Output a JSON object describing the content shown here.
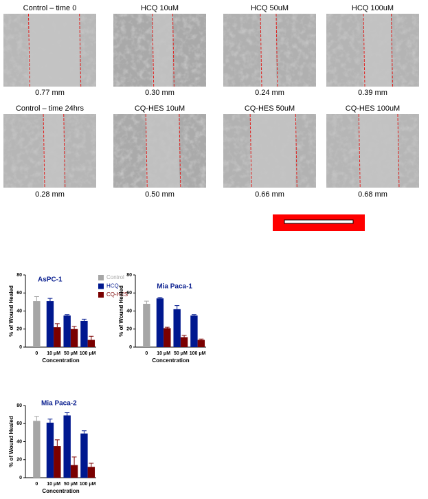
{
  "panels": [
    {
      "title": "Control – time 0",
      "measurement": "0.77 mm"
    },
    {
      "title": "HCQ 10uM",
      "measurement": "0.30 mm"
    },
    {
      "title": "HCQ 50uM",
      "measurement": "0.24 mm"
    },
    {
      "title": "HCQ 100uM",
      "measurement": "0.39 mm"
    },
    {
      "title": "Control – time 24hrs",
      "measurement": "0.28 mm"
    },
    {
      "title": "CQ-HES 10uM",
      "measurement": "0.50 mm"
    },
    {
      "title": "CQ-HES 50uM",
      "measurement": "0.66 mm"
    },
    {
      "title": "CQ-HES 100uM",
      "measurement": "0.68 mm"
    }
  ],
  "chart_data": [
    {
      "type": "bar",
      "title": "AsPC-1",
      "x_label": "Concentration",
      "y_label": "% of  Wound Healed",
      "categories": [
        "0",
        "10 μM",
        "50 μM",
        "100 μM"
      ],
      "ylim": [
        0,
        80
      ],
      "yticks": [
        0,
        20,
        40,
        60,
        80
      ],
      "legend": true,
      "series": [
        {
          "name": "Control",
          "color": "#a6a6a6",
          "values": [
            51,
            null,
            null,
            null
          ],
          "errors": [
            5,
            null,
            null,
            null
          ]
        },
        {
          "name": "HCQ",
          "color": "#00188f",
          "values": [
            null,
            51,
            35,
            29
          ],
          "errors": [
            null,
            3,
            1,
            2
          ]
        },
        {
          "name": "CQ-HES",
          "color": "#7a0000",
          "values": [
            null,
            22,
            20,
            8
          ],
          "errors": [
            null,
            4,
            3,
            4
          ]
        }
      ]
    },
    {
      "type": "bar",
      "title": "Mia Paca-1",
      "x_label": "Concentration",
      "y_label": "% of  Wound Healed",
      "categories": [
        "0",
        "10 μM",
        "50 μM",
        "100 μM"
      ],
      "ylim": [
        0,
        80
      ],
      "yticks": [
        0,
        20,
        40,
        60,
        80
      ],
      "legend": false,
      "series": [
        {
          "name": "Control",
          "color": "#a6a6a6",
          "values": [
            48,
            null,
            null,
            null
          ],
          "errors": [
            3,
            null,
            null,
            null
          ]
        },
        {
          "name": "HCQ",
          "color": "#00188f",
          "values": [
            null,
            54,
            42,
            35
          ],
          "errors": [
            null,
            1,
            4,
            1
          ]
        },
        {
          "name": "CQ-HES",
          "color": "#7a0000",
          "values": [
            null,
            21,
            11,
            8
          ],
          "errors": [
            null,
            1,
            2,
            1
          ]
        }
      ]
    },
    {
      "type": "bar",
      "title": "Mia Paca-2",
      "x_label": "Concentration",
      "y_label": "% of  Wound Healed",
      "categories": [
        "0",
        "10 μM",
        "50 μM",
        "100 μM"
      ],
      "ylim": [
        0,
        80
      ],
      "yticks": [
        0,
        20,
        40,
        60,
        80
      ],
      "legend": false,
      "series": [
        {
          "name": "Control",
          "color": "#a6a6a6",
          "values": [
            63,
            null,
            null,
            null
          ],
          "errors": [
            5,
            null,
            null,
            null
          ]
        },
        {
          "name": "HCQ",
          "color": "#00188f",
          "values": [
            null,
            61,
            69,
            49
          ],
          "errors": [
            null,
            4,
            3,
            3
          ]
        },
        {
          "name": "CQ-HES",
          "color": "#7a0000",
          "values": [
            null,
            35,
            14,
            12
          ],
          "errors": [
            null,
            7,
            9,
            4
          ]
        }
      ]
    }
  ]
}
